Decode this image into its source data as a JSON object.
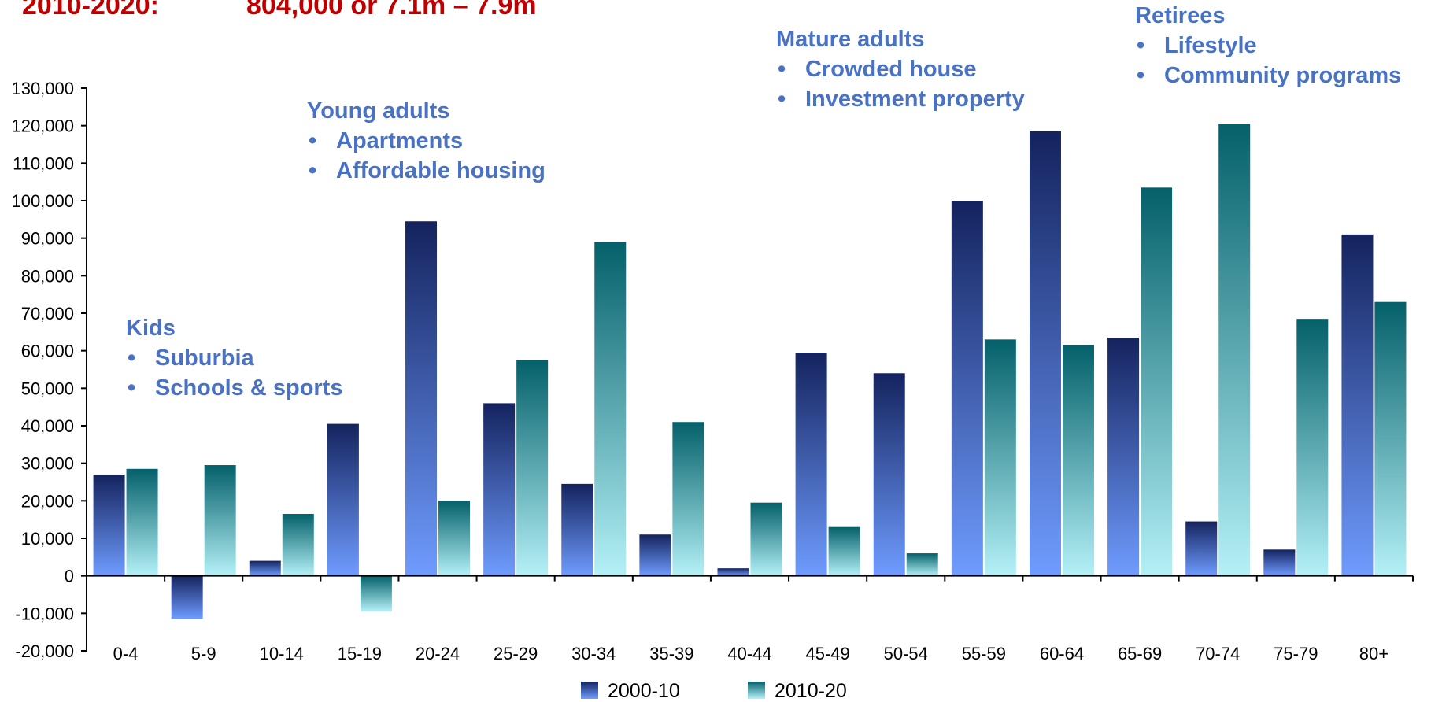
{
  "header": {
    "label": "2010-2020:",
    "value": "804,000 or 7.1m – 7.9m"
  },
  "annotations": [
    {
      "id": "kids",
      "title": "Kids",
      "items": [
        "Suburbia",
        "Schools & sports"
      ]
    },
    {
      "id": "young-adults",
      "title": "Young adults",
      "items": [
        "Apartments",
        "Affordable housing"
      ]
    },
    {
      "id": "mature-adults",
      "title": "Mature adults",
      "items": [
        "Crowded house",
        "Investment property"
      ]
    },
    {
      "id": "retirees",
      "title": "Retirees",
      "items": [
        "Lifestyle",
        "Community programs"
      ]
    }
  ],
  "colors": {
    "series_2000_10_top": "#14235e",
    "series_2000_10_bottom": "#6f9cff",
    "series_2010_20_top": "#04606a",
    "series_2010_20_bottom": "#b4f1f7",
    "annotation": "#4a72c4",
    "header": "#c00000"
  },
  "chart_data": {
    "type": "bar",
    "categories": [
      "0-4",
      "5-9",
      "10-14",
      "15-19",
      "20-24",
      "25-29",
      "30-34",
      "35-39",
      "40-44",
      "45-49",
      "50-54",
      "55-59",
      "60-64",
      "65-69",
      "70-74",
      "75-79",
      "80+"
    ],
    "series": [
      {
        "name": "2000-10",
        "values": [
          27000,
          -11500,
          4000,
          40500,
          94500,
          46000,
          24500,
          11000,
          2000,
          59500,
          54000,
          100000,
          118500,
          63500,
          14500,
          7000,
          91000
        ]
      },
      {
        "name": "2010-20",
        "values": [
          28500,
          29500,
          16500,
          -9500,
          20000,
          57500,
          89000,
          41000,
          19500,
          13000,
          6000,
          63000,
          61500,
          103500,
          120500,
          68500,
          73000
        ]
      }
    ],
    "y_ticks": [
      "-20,000",
      "-10,000",
      "0",
      "10,000",
      "20,000",
      "30,000",
      "40,000",
      "50,000",
      "60,000",
      "70,000",
      "80,000",
      "90,000",
      "100,000",
      "110,000",
      "120,000",
      "130,000"
    ],
    "ylim": [
      -20000,
      130000
    ],
    "grid": false,
    "legend": "bottom-center"
  }
}
